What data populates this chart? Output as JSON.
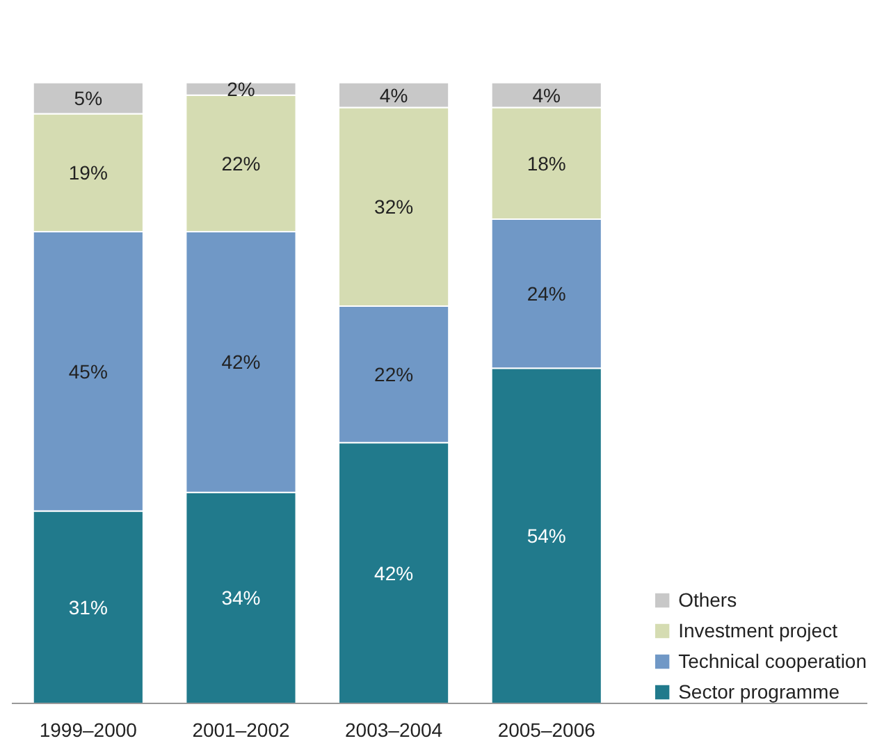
{
  "chart_data": {
    "type": "bar",
    "stacked": true,
    "legend": "bottom right",
    "grid": false,
    "categories": [
      "1999–2000",
      "2001–2002",
      "2003–2004",
      "2005–2006"
    ],
    "series": [
      {
        "name": "Sector programme",
        "color": "#217a8c",
        "values": [
          31,
          34,
          42,
          54
        ],
        "value_labels": [
          "31%",
          "34%",
          "42%",
          "54%"
        ]
      },
      {
        "name": "Technical cooperation",
        "color": "#7098c6",
        "values": [
          45,
          42,
          22,
          24
        ],
        "value_labels": [
          "45%",
          "42%",
          "22%",
          "24%"
        ]
      },
      {
        "name": "Investment project",
        "color": "#d5dcb2",
        "values": [
          19,
          22,
          32,
          18
        ],
        "value_labels": [
          "19%",
          "22%",
          "32%",
          "18%"
        ]
      },
      {
        "name": "Others",
        "color": "#c8c8c8",
        "values": [
          5,
          2,
          4,
          4
        ],
        "value_labels": [
          "5%",
          "2%",
          "4%",
          "4%"
        ]
      }
    ]
  }
}
